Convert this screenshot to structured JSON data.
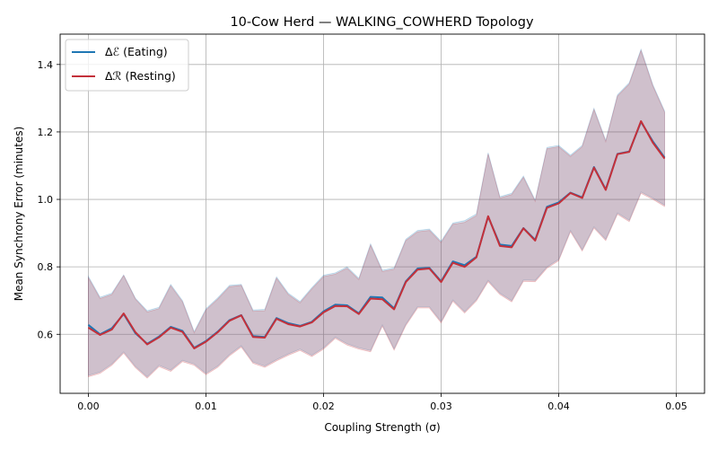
{
  "chart_data": {
    "type": "line",
    "title": "10-Cow Herd — WALKING_COWHERD Topology",
    "xlabel": "Coupling Strength (σ)",
    "ylabel": "Mean Synchrony Error (minutes)",
    "xlim": [
      -0.0024,
      0.0524
    ],
    "ylim": [
      0.425,
      1.49
    ],
    "xticks": [
      "0.00",
      "0.01",
      "0.02",
      "0.03",
      "0.04",
      "0.05"
    ],
    "yticks": [
      "0.6",
      "0.8",
      "1.0",
      "1.2",
      "1.4"
    ],
    "grid": true,
    "legend_placement": "top-left",
    "x": [
      0.0,
      0.001,
      0.002,
      0.003,
      0.004,
      0.005,
      0.006,
      0.007,
      0.008,
      0.009,
      0.01,
      0.011,
      0.012,
      0.013,
      0.014,
      0.015,
      0.016,
      0.017,
      0.018,
      0.019,
      0.02,
      0.021,
      0.022,
      0.023,
      0.024,
      0.025,
      0.026,
      0.027,
      0.028,
      0.029,
      0.03,
      0.031,
      0.032,
      0.033,
      0.034,
      0.035,
      0.036,
      0.037,
      0.038,
      0.039,
      0.04,
      0.041,
      0.042,
      0.043,
      0.044,
      0.045,
      0.046,
      0.047,
      0.048,
      0.049,
      0.05
    ],
    "series": [
      {
        "name": "Δℰ (Eating)",
        "color": "#1f77b4",
        "values": [
          0.628,
          0.6,
          0.618,
          0.66,
          0.603,
          0.572,
          0.593,
          0.622,
          0.61,
          0.56,
          0.58,
          0.608,
          0.642,
          0.657,
          0.595,
          0.592,
          0.648,
          0.633,
          0.625,
          0.637,
          0.668,
          0.688,
          0.686,
          0.662,
          0.711,
          0.709,
          0.677,
          0.757,
          0.795,
          0.797,
          0.757,
          0.816,
          0.805,
          0.83,
          0.949,
          0.866,
          0.862,
          0.915,
          0.88,
          0.978,
          0.991,
          1.02,
          1.006,
          1.096,
          1.03,
          1.135,
          1.142,
          1.23,
          1.172,
          1.124,
          null
        ],
        "upper": [
          0.772,
          0.71,
          0.722,
          0.776,
          0.707,
          0.67,
          0.68,
          0.748,
          0.7,
          0.608,
          0.676,
          0.708,
          0.745,
          0.748,
          0.672,
          0.674,
          0.77,
          0.722,
          0.697,
          0.738,
          0.775,
          0.782,
          0.8,
          0.766,
          0.868,
          0.79,
          0.797,
          0.882,
          0.908,
          0.912,
          0.876,
          0.93,
          0.937,
          0.957,
          1.138,
          1.008,
          1.018,
          1.069,
          0.998,
          1.154,
          1.16,
          1.131,
          1.16,
          1.27,
          1.175,
          1.31,
          1.346,
          1.445,
          1.34,
          1.262,
          null
        ],
        "lower": [
          0.478,
          0.488,
          0.512,
          0.548,
          0.505,
          0.474,
          0.508,
          0.494,
          0.523,
          0.512,
          0.484,
          0.506,
          0.54,
          0.566,
          0.518,
          0.506,
          0.525,
          0.542,
          0.556,
          0.538,
          0.56,
          0.592,
          0.572,
          0.56,
          0.552,
          0.628,
          0.557,
          0.63,
          0.682,
          0.682,
          0.638,
          0.702,
          0.667,
          0.703,
          0.76,
          0.722,
          0.7,
          0.761,
          0.76,
          0.8,
          0.822,
          0.908,
          0.851,
          0.919,
          0.882,
          0.96,
          0.938,
          1.022,
          1.004,
          0.983,
          null
        ]
      },
      {
        "name": "Δℛ (Resting)",
        "color": "#c4303a",
        "values": [
          0.62,
          0.598,
          0.614,
          0.662,
          0.606,
          0.57,
          0.591,
          0.62,
          0.607,
          0.558,
          0.578,
          0.606,
          0.64,
          0.656,
          0.592,
          0.59,
          0.646,
          0.63,
          0.623,
          0.635,
          0.665,
          0.684,
          0.683,
          0.66,
          0.706,
          0.704,
          0.674,
          0.755,
          0.792,
          0.795,
          0.755,
          0.812,
          0.8,
          0.828,
          0.95,
          0.862,
          0.858,
          0.914,
          0.878,
          0.975,
          0.988,
          1.019,
          1.004,
          1.094,
          1.028,
          1.134,
          1.141,
          1.232,
          1.168,
          1.121,
          null
        ],
        "upper": [
          0.768,
          0.706,
          0.718,
          0.774,
          0.704,
          0.666,
          0.676,
          0.744,
          0.696,
          0.604,
          0.672,
          0.704,
          0.741,
          0.745,
          0.668,
          0.67,
          0.766,
          0.718,
          0.693,
          0.734,
          0.771,
          0.778,
          0.796,
          0.762,
          0.864,
          0.786,
          0.793,
          0.878,
          0.904,
          0.908,
          0.872,
          0.926,
          0.932,
          0.952,
          1.134,
          1.004,
          1.014,
          1.065,
          0.994,
          1.15,
          1.156,
          1.127,
          1.156,
          1.266,
          1.171,
          1.306,
          1.342,
          1.441,
          1.336,
          1.258,
          null
        ],
        "lower": [
          0.474,
          0.484,
          0.508,
          0.544,
          0.501,
          0.47,
          0.504,
          0.49,
          0.519,
          0.508,
          0.48,
          0.502,
          0.536,
          0.562,
          0.514,
          0.502,
          0.521,
          0.538,
          0.552,
          0.534,
          0.556,
          0.588,
          0.568,
          0.556,
          0.548,
          0.624,
          0.553,
          0.626,
          0.678,
          0.678,
          0.634,
          0.698,
          0.663,
          0.699,
          0.756,
          0.718,
          0.696,
          0.757,
          0.756,
          0.796,
          0.818,
          0.904,
          0.847,
          0.915,
          0.878,
          0.956,
          0.934,
          1.018,
          1.0,
          0.979,
          null
        ]
      }
    ]
  }
}
